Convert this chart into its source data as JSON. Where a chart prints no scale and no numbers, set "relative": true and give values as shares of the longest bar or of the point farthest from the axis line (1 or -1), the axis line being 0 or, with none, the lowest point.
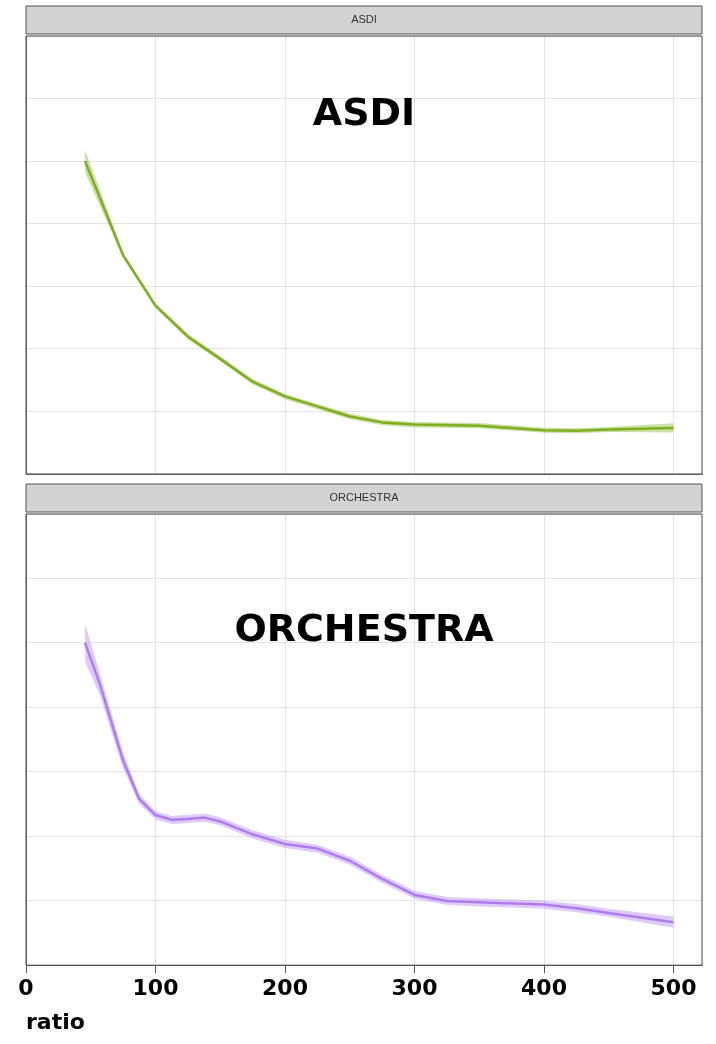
{
  "chart_data": [
    {
      "type": "line",
      "title": "ASDI",
      "annotations": [
        "ASDI"
      ],
      "relative": true,
      "grid": true,
      "legend": false,
      "marker": "none",
      "tick_labels": false,
      "xlim": [
        0,
        522
      ],
      "xticks": [
        0,
        100,
        200,
        300,
        400,
        500
      ],
      "x": [
        45.6,
        75,
        100,
        125,
        150,
        175,
        200,
        225,
        250,
        275,
        300,
        350,
        400,
        425,
        450,
        500
      ],
      "series": [
        {
          "color": "#7fb020",
          "values": [
            1,
            0.699,
            0.538,
            0.439,
            0.368,
            0.295,
            0.248,
            0.216,
            0.184,
            0.165,
            0.158,
            0.154,
            0.14,
            0.138,
            0.142,
            0.147
          ],
          "lower": [
            0.964,
            0.691,
            0.53,
            0.431,
            0.36,
            0.287,
            0.239,
            0.207,
            0.176,
            0.156,
            0.149,
            0.146,
            0.132,
            0.13,
            0.134,
            0.133
          ],
          "upper": [
            1.036,
            0.708,
            0.546,
            0.448,
            0.376,
            0.304,
            0.256,
            0.224,
            0.193,
            0.173,
            0.166,
            0.163,
            0.148,
            0.146,
            0.15,
            0.162
          ]
        }
      ]
    },
    {
      "type": "line",
      "title": "ORCHESTRA",
      "annotations": [
        "ORCHESTRA"
      ],
      "relative": true,
      "grid": true,
      "legend": false,
      "marker": "none",
      "tick_labels": "x",
      "xlabel": "ratio",
      "xlim": [
        0,
        522
      ],
      "xticks": [
        0,
        100,
        200,
        300,
        400,
        500
      ],
      "x": [
        45.6,
        57,
        75,
        87.4,
        100,
        112.6,
        125,
        138,
        150,
        175,
        200,
        225,
        240,
        250,
        275,
        300,
        325,
        350,
        400,
        425,
        450,
        500
      ],
      "series": [
        {
          "color": "#b07cf0",
          "values": [
            1,
            0.872,
            0.635,
            0.516,
            0.466,
            0.451,
            0.454,
            0.458,
            0.446,
            0.406,
            0.376,
            0.362,
            0.339,
            0.324,
            0.268,
            0.218,
            0.199,
            0.195,
            0.188,
            0.177,
            0.162,
            0.133
          ],
          "lower": [
            0.941,
            0.838,
            0.61,
            0.501,
            0.453,
            0.438,
            0.441,
            0.445,
            0.434,
            0.393,
            0.364,
            0.349,
            0.327,
            0.312,
            0.256,
            0.206,
            0.187,
            0.182,
            0.175,
            0.164,
            0.15,
            0.116
          ],
          "upper": [
            1.06,
            0.906,
            0.661,
            0.532,
            0.478,
            0.463,
            0.467,
            0.471,
            0.459,
            0.419,
            0.389,
            0.374,
            0.352,
            0.337,
            0.281,
            0.231,
            0.212,
            0.208,
            0.2,
            0.19,
            0.175,
            0.151
          ]
        }
      ]
    }
  ]
}
